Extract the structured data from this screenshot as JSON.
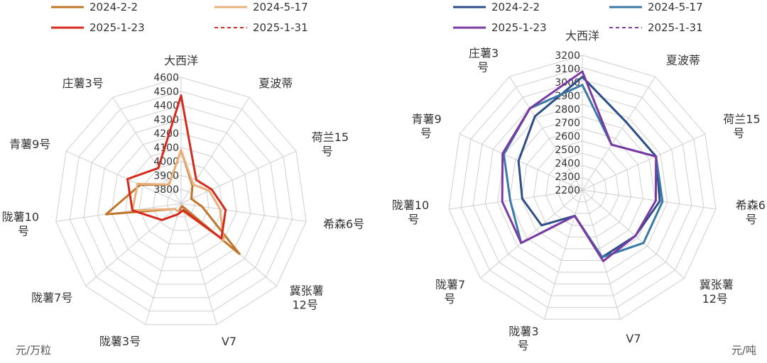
{
  "chart_data": [
    {
      "type": "radar",
      "categories": [
        "大西洋",
        "夏波蒂",
        "荷兰15号",
        "希森6号",
        "冀张薯12号",
        "V7",
        "陇薯3号",
        "陇薯7号",
        "陇薯10号",
        "青薯9号",
        "庄薯3号"
      ],
      "ylim": [
        3700,
        4600
      ],
      "ticks": [
        3800,
        3900,
        4000,
        4100,
        4200,
        4300,
        4400,
        4500,
        4600
      ],
      "unit": "元/万粒",
      "legend_position": "top",
      "series": [
        {
          "name": "2024-2-2",
          "color": "#c0762a",
          "dash": false,
          "values": [
            4080,
            3850,
            3780,
            3850,
            4250,
            3720,
            3760,
            3760,
            4240,
            4020,
            3860
          ]
        },
        {
          "name": "2024-5-17",
          "color": "#e8b07c",
          "dash": false,
          "values": [
            4080,
            3860,
            3920,
            3980,
            4100,
            3760,
            3760,
            3760,
            4050,
            4040,
            3860
          ]
        },
        {
          "name": "2025-1-23",
          "color": "#d42a1e",
          "dash": false,
          "values": [
            4470,
            3900,
            3940,
            4020,
            4080,
            3750,
            3780,
            3880,
            4050,
            4120,
            4000
          ]
        },
        {
          "name": "2025-1-31",
          "color": "#d42a1e",
          "dash": true,
          "values": [
            4470,
            3900,
            3940,
            4020,
            4080,
            3750,
            3780,
            3880,
            4050,
            4120,
            4000
          ]
        }
      ]
    },
    {
      "type": "radar",
      "categories": [
        "大西洋",
        "夏波蒂",
        "荷兰15号",
        "希森6号",
        "冀张薯12号",
        "V7",
        "陇薯3号",
        "陇薯7号",
        "陇薯10号",
        "青薯9号",
        "庄薯3号"
      ],
      "ylim": [
        2200,
        3200
      ],
      "ticks": [
        2200,
        2300,
        2400,
        2500,
        2600,
        2700,
        2800,
        2900,
        3000,
        3100,
        3200
      ],
      "unit": "元/吨",
      "legend_position": "top",
      "series": [
        {
          "name": "2024-2-2",
          "color": "#2c4d86",
          "dash": false,
          "values": [
            3040,
            2800,
            2800,
            2780,
            2720,
            2720,
            2400,
            2600,
            2650,
            2720,
            2850
          ]
        },
        {
          "name": "2024-5-17",
          "color": "#3a78a6",
          "dash": false,
          "values": [
            2980,
            2600,
            2800,
            2800,
            2800,
            2720,
            2400,
            2800,
            2740,
            2840,
            2920
          ]
        },
        {
          "name": "2025-1-23",
          "color": "#7b3aa3",
          "dash": false,
          "values": [
            3080,
            2600,
            2800,
            2750,
            2720,
            2750,
            2400,
            2800,
            2800,
            2850,
            2920
          ]
        },
        {
          "name": "2025-1-31",
          "color": "#7b3aa3",
          "dash": true,
          "values": [
            3080,
            2600,
            2800,
            2750,
            2720,
            2750,
            2400,
            2800,
            2800,
            2850,
            2920
          ]
        }
      ]
    }
  ],
  "labels_left": {
    "spokes": [
      {
        "lines": [
          "大西洋"
        ]
      },
      {
        "lines": [
          "夏波蒂"
        ]
      },
      {
        "lines": [
          "荷兰15",
          "号"
        ]
      },
      {
        "lines": [
          "希森6号"
        ]
      },
      {
        "lines": [
          "冀张薯",
          "12号"
        ]
      },
      {
        "lines": [
          "V7"
        ]
      },
      {
        "lines": [
          "陇薯3号"
        ]
      },
      {
        "lines": [
          "陇薯7号"
        ]
      },
      {
        "lines": [
          "陇薯10",
          "号"
        ]
      },
      {
        "lines": [
          "青薯9号"
        ]
      },
      {
        "lines": [
          "庄薯3号"
        ]
      }
    ]
  },
  "labels_right": {
    "spokes": [
      {
        "lines": [
          "大西洋"
        ]
      },
      {
        "lines": [
          "夏波蒂"
        ]
      },
      {
        "lines": [
          "荷兰15",
          "号"
        ]
      },
      {
        "lines": [
          "希森6",
          "号"
        ]
      },
      {
        "lines": [
          "冀张薯",
          "12号"
        ]
      },
      {
        "lines": [
          "V7"
        ]
      },
      {
        "lines": [
          "陇薯3",
          "号"
        ]
      },
      {
        "lines": [
          "陇薯7",
          "号"
        ]
      },
      {
        "lines": [
          "陇薯10",
          "号"
        ]
      },
      {
        "lines": [
          "青薯9",
          "号"
        ]
      },
      {
        "lines": [
          "庄薯3",
          "号"
        ]
      }
    ]
  }
}
